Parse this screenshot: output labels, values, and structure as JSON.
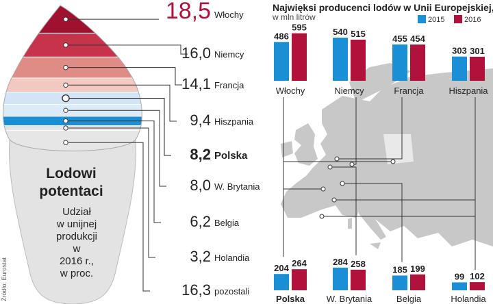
{
  "source_label": "Źródło: Eurostat",
  "cone": {
    "title_lines": [
      "Lodowi",
      "potentaci"
    ],
    "text_lines": [
      "Udział",
      "w unijnej",
      "produkcji",
      "w",
      "2016 r.,",
      "w proc."
    ]
  },
  "title": "Najwięksi producenci lodów w Unii Europejskiej,",
  "subtitle": "w mln litrów",
  "colors": {
    "y2015": "#1a8fd6",
    "y2016": "#b0123c",
    "map": "#c8c8c8",
    "cone": "#e3e3e3"
  },
  "chart_data": [
    {
      "type": "stacked-bar",
      "unit": "%",
      "categories": [
        "Włochy",
        "Niemcy",
        "Francja",
        "Hiszpania",
        "Polska",
        "W. Brytania",
        "Belgia",
        "Holandia",
        "pozostali"
      ],
      "values": [
        18.5,
        16.0,
        14.1,
        9.4,
        8.2,
        8.0,
        6.2,
        3.2,
        16.3
      ],
      "value_labels": [
        "18,5",
        "16,0",
        "14,1",
        "9,4",
        "8,2",
        "8,0",
        "6,2",
        "3,2",
        "16,3"
      ],
      "highlight": "Polska"
    },
    {
      "type": "bar",
      "series": [
        {
          "name": "2015",
          "values": [
            486,
            540,
            455,
            303,
            204,
            284,
            185,
            99
          ]
        },
        {
          "name": "2016",
          "values": [
            595,
            515,
            454,
            301,
            264,
            258,
            199,
            102
          ]
        }
      ],
      "categories": [
        "Włochy",
        "Niemcy",
        "Francja",
        "Hiszpania",
        "Polska",
        "W. Brytania",
        "Belgia",
        "Holandia"
      ],
      "ylim": [
        0,
        600
      ]
    }
  ]
}
